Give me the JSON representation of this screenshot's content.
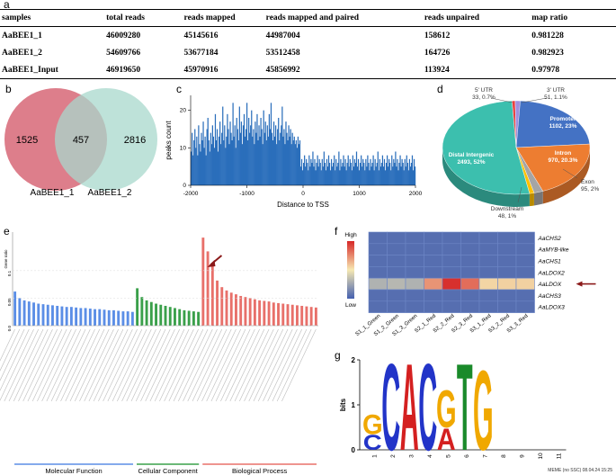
{
  "panels": {
    "a": "a",
    "b": "b",
    "c": "c",
    "d": "d",
    "e": "e",
    "f": "f",
    "g": "g"
  },
  "table": {
    "headers": [
      "samples",
      "total reads",
      "reads mapped",
      "reads mapped and paired",
      "reads unpaired",
      "map ratio"
    ],
    "rows": [
      [
        "AaBEE1_1",
        "46009280",
        "45145616",
        "44987004",
        "158612",
        "0.981228"
      ],
      [
        "AaBEE1_2",
        "54609766",
        "53677184",
        "53512458",
        "164726",
        "0.982923"
      ],
      [
        "AaBEE1_Input",
        "46919650",
        "45970916",
        "45856992",
        "113924",
        "0.97978"
      ]
    ]
  },
  "venn": {
    "left_only": "1525",
    "overlap": "457",
    "right_only": "2816",
    "left_label": "AaBEE1_1",
    "right_label": "AaBEE1_2",
    "left_color": "#d9707e",
    "right_color": "#a8d8cc"
  },
  "chart_data": [
    {
      "type": "bar",
      "panel": "c",
      "title": "",
      "xlabel": "Distance to TSS",
      "ylabel": "peaks count",
      "xlim": [
        -2000,
        2000
      ],
      "ylim": [
        0,
        24
      ],
      "xticks": [
        "-2000",
        "-1000",
        "0",
        "1000",
        "2000"
      ],
      "yticks": [
        "0",
        "10",
        "20"
      ],
      "color": "#2a6ebb",
      "values": [
        9,
        14,
        8,
        12,
        15,
        10,
        13,
        8,
        16,
        11,
        9,
        14,
        12,
        17,
        10,
        13,
        8,
        15,
        18,
        12,
        9,
        14,
        11,
        16,
        13,
        10,
        19,
        12,
        15,
        9,
        13,
        17,
        11,
        14,
        21,
        12,
        16,
        10,
        13,
        19,
        15,
        11,
        17,
        14,
        12,
        22,
        13,
        16,
        10,
        18,
        15,
        12,
        21,
        14,
        17,
        11,
        16,
        19,
        13,
        15,
        22,
        12,
        18,
        14,
        16,
        20,
        13,
        15,
        11,
        17,
        14,
        19,
        12,
        16,
        13,
        18,
        15,
        11,
        20,
        14,
        17,
        12,
        16,
        13,
        19,
        15,
        22,
        14,
        12,
        17,
        13,
        16,
        11,
        15,
        18,
        12,
        14,
        16,
        21,
        13,
        15,
        11,
        17,
        14,
        12,
        16,
        13,
        15,
        11,
        14,
        12,
        13,
        11,
        12,
        10,
        13,
        11,
        12,
        5,
        7,
        4,
        6,
        8,
        5,
        7,
        6,
        4,
        8,
        5,
        7,
        6,
        9,
        5,
        7,
        4,
        6,
        8,
        5,
        7,
        6,
        4,
        7,
        5,
        9,
        6,
        4,
        7,
        5,
        8,
        6,
        4,
        7,
        5,
        6,
        8,
        4,
        7,
        5,
        6,
        9,
        4,
        7,
        5,
        6,
        8,
        5,
        7,
        4,
        6,
        8,
        5,
        7,
        6,
        4,
        8,
        5,
        7,
        6,
        9,
        5,
        7,
        4,
        6,
        8,
        5,
        7,
        6,
        4,
        7,
        5,
        8,
        6,
        4,
        7,
        5,
        6,
        8,
        4,
        7,
        5,
        6,
        9,
        4,
        7,
        5,
        6,
        8,
        5,
        7,
        4,
        6,
        8,
        5,
        7,
        6,
        4,
        8,
        5,
        7,
        6,
        9,
        5,
        7,
        4,
        6,
        8,
        5,
        7,
        6,
        4,
        7,
        5,
        8,
        6,
        4,
        7,
        5,
        6,
        8,
        4,
        7,
        5
      ]
    },
    {
      "type": "pie",
      "panel": "d",
      "slices": [
        {
          "label": "Promoter",
          "value": "1102",
          "pct": "23%",
          "fraction": 0.23,
          "color": "#4472c4"
        },
        {
          "label": "Intron",
          "value": "970",
          "pct": "20.3%",
          "fraction": 0.203,
          "color": "#ed7d31"
        },
        {
          "label": "Exon",
          "value": "95",
          "pct": "2%",
          "fraction": 0.02,
          "color": "#a5a5a5"
        },
        {
          "label": "Downstream",
          "value": "48",
          "pct": "1%",
          "fraction": 0.01,
          "color": "#ffc000"
        },
        {
          "label": "Distal Intergenic",
          "value": "2493",
          "pct": "52%",
          "fraction": 0.52,
          "color": "#3cbfae"
        },
        {
          "label": "5' UTR",
          "value": "33",
          "pct": "0.7%",
          "fraction": 0.007,
          "color": "#e84040"
        },
        {
          "label": "3' UTR",
          "value": "51",
          "pct": "1.1%",
          "fraction": 0.011,
          "color": "#9f8fe0"
        }
      ]
    },
    {
      "type": "bar",
      "panel": "e",
      "ylabel": "Gene ratio",
      "groups": [
        {
          "name": "Molecular Function",
          "color": "#5b8ee6",
          "n": 26
        },
        {
          "name": "Cellular Component",
          "color": "#3aa04a",
          "n": 14
        },
        {
          "name": "Biological Process",
          "color": "#e8706a",
          "n": 25
        }
      ],
      "yticks": [
        "0.0",
        "0.05",
        "0.1"
      ],
      "values": [
        0.062,
        0.05,
        0.046,
        0.044,
        0.042,
        0.04,
        0.039,
        0.038,
        0.037,
        0.036,
        0.035,
        0.034,
        0.034,
        0.033,
        0.032,
        0.032,
        0.031,
        0.03,
        0.03,
        0.029,
        0.028,
        0.028,
        0.027,
        0.026,
        0.026,
        0.025,
        0.068,
        0.052,
        0.046,
        0.043,
        0.04,
        0.038,
        0.036,
        0.034,
        0.032,
        0.03,
        0.028,
        0.027,
        0.026,
        0.025,
        0.16,
        0.135,
        0.11,
        0.082,
        0.07,
        0.064,
        0.06,
        0.057,
        0.054,
        0.052,
        0.05,
        0.048,
        0.046,
        0.045,
        0.044,
        0.042,
        0.041,
        0.04,
        0.039,
        0.038,
        0.037,
        0.036,
        0.035,
        0.034,
        0.033
      ],
      "arrow_color": "#8b1a1a"
    },
    {
      "type": "heatmap",
      "panel": "f",
      "columns": [
        "S1_1_Green",
        "S1_2_Green",
        "S1_3_Green",
        "S2_1_Red",
        "S2_2_Red",
        "S2_3_Red",
        "S3_1_Red",
        "S3_2_Red",
        "S3_3_Red"
      ],
      "rows": [
        "AaCHS2",
        "AaMYB-like",
        "AaCHS1",
        "AaLDOX2",
        "AaLDOX",
        "AaCHS3",
        "AaLDOX3"
      ],
      "legend_high": "High",
      "legend_low": "Low",
      "matrix": [
        [
          0.05,
          0.05,
          0.05,
          0.05,
          0.05,
          0.05,
          0.05,
          0.05,
          0.05
        ],
        [
          0.05,
          0.05,
          0.05,
          0.05,
          0.05,
          0.05,
          0.05,
          0.05,
          0.05
        ],
        [
          0.05,
          0.05,
          0.05,
          0.05,
          0.05,
          0.05,
          0.05,
          0.05,
          0.05
        ],
        [
          0.05,
          0.05,
          0.05,
          0.05,
          0.05,
          0.05,
          0.05,
          0.05,
          0.05
        ],
        [
          0.3,
          0.32,
          0.3,
          0.72,
          0.98,
          0.82,
          0.55,
          0.56,
          0.56
        ],
        [
          0.05,
          0.05,
          0.05,
          0.05,
          0.05,
          0.05,
          0.05,
          0.05,
          0.05
        ],
        [
          0.05,
          0.05,
          0.05,
          0.05,
          0.05,
          0.05,
          0.05,
          0.05,
          0.05
        ]
      ]
    }
  ],
  "logo": {
    "ylabel": "bits",
    "yticks": [
      "0",
      "1",
      "2"
    ],
    "positions": [
      "1",
      "2",
      "3",
      "4",
      "5",
      "6",
      "7",
      "8",
      "9",
      "10",
      "11"
    ],
    "footer": "MEME (no SSC) 08.04.24 15:25",
    "letters": [
      {
        "pos": 1,
        "stack": [
          {
            "ch": "C",
            "h": 0.35,
            "color": "#2234c8"
          },
          {
            "ch": "G",
            "h": 0.45,
            "color": "#f0a800"
          }
        ]
      },
      {
        "pos": 2,
        "stack": [
          {
            "ch": "C",
            "h": 1.98,
            "color": "#2234c8"
          }
        ]
      },
      {
        "pos": 3,
        "stack": [
          {
            "ch": "A",
            "h": 1.98,
            "color": "#d42020"
          }
        ]
      },
      {
        "pos": 4,
        "stack": [
          {
            "ch": "C",
            "h": 1.98,
            "color": "#2234c8"
          }
        ]
      },
      {
        "pos": 5,
        "stack": [
          {
            "ch": "A",
            "h": 0.5,
            "color": "#d42020"
          },
          {
            "ch": "G",
            "h": 0.85,
            "color": "#f0a800"
          }
        ]
      },
      {
        "pos": 6,
        "stack": [
          {
            "ch": "T",
            "h": 1.98,
            "color": "#1a8a2a"
          }
        ]
      },
      {
        "pos": 7,
        "stack": [
          {
            "ch": "G",
            "h": 1.82,
            "color": "#f0a800"
          }
        ]
      }
    ]
  }
}
